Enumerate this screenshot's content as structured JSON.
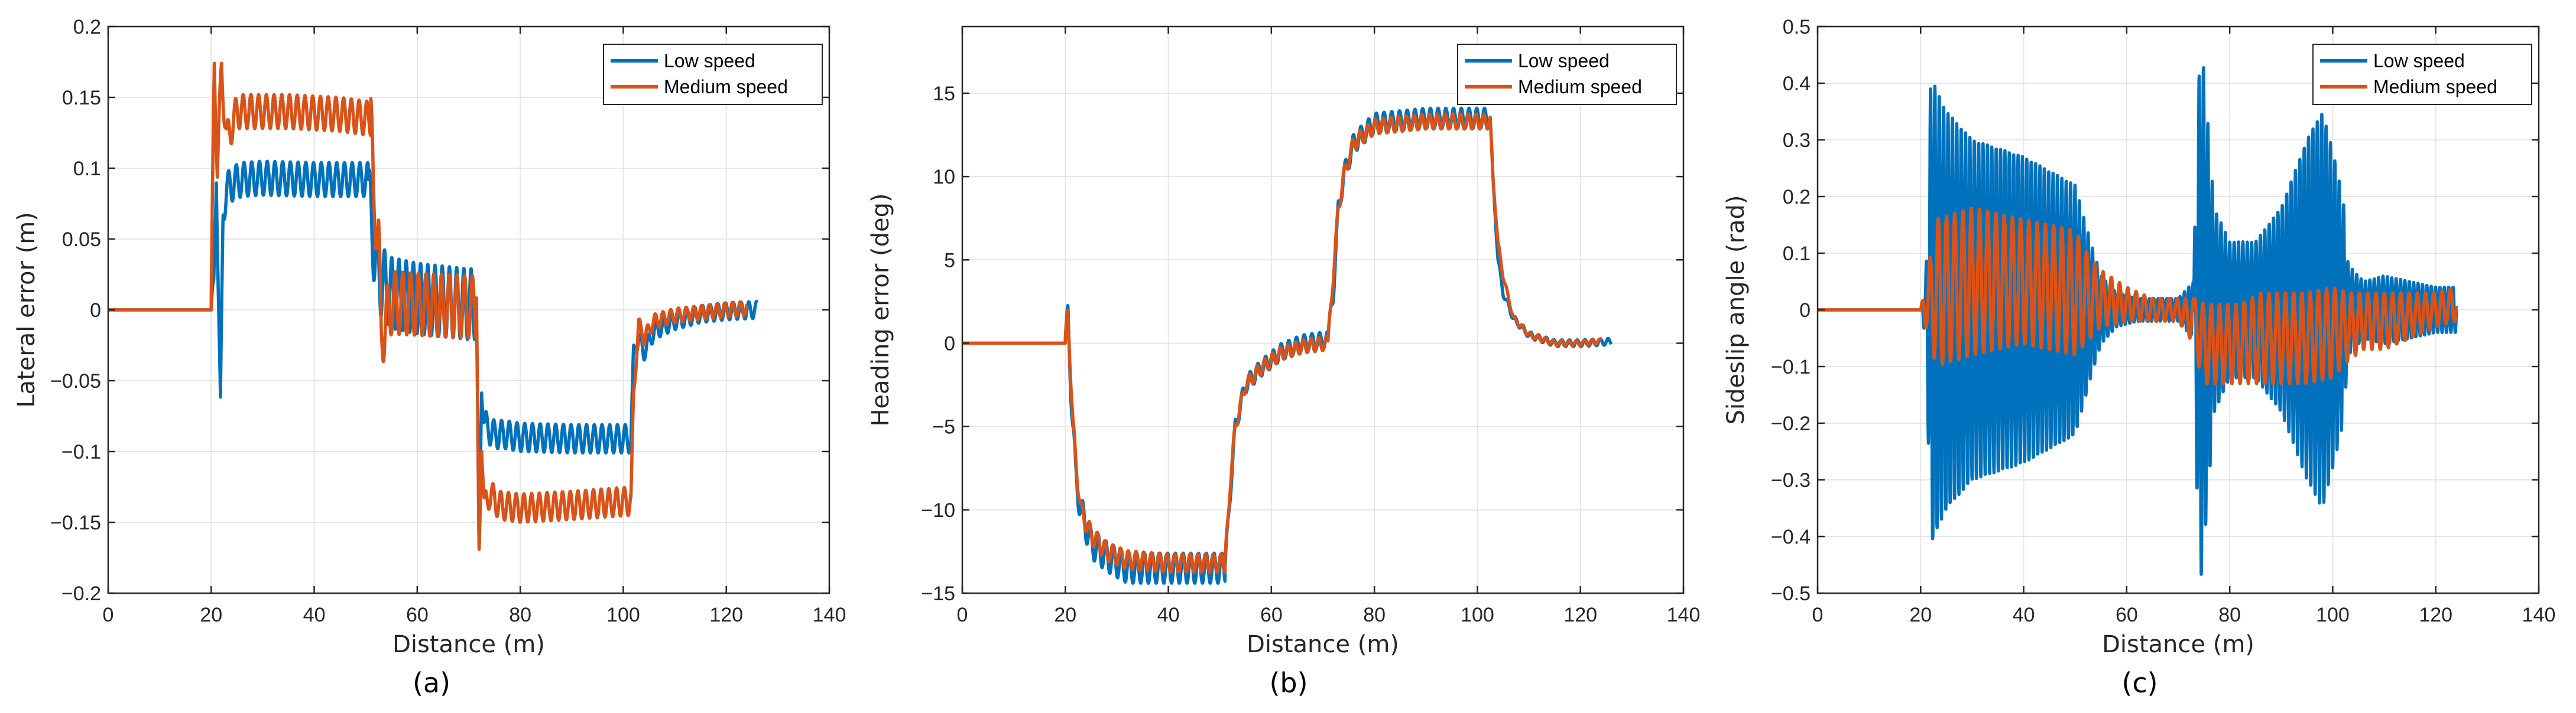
{
  "figure": {
    "panel_tags": [
      "(a)",
      "(b)",
      "(c)"
    ]
  },
  "colors": {
    "low_speed": "#0072BD",
    "medium_speed": "#D95319",
    "grid": "#e6e6e6",
    "axis": "#262626"
  },
  "chart_data": [
    {
      "type": "line",
      "title": "",
      "xlabel": "Distance (m)",
      "ylabel": "Lateral error (m)",
      "xlim": [
        0,
        140
      ],
      "ylim": [
        -0.2,
        0.2
      ],
      "xticks": [
        0,
        20,
        40,
        60,
        80,
        100,
        120,
        140
      ],
      "yticks": [
        -0.2,
        -0.15,
        -0.1,
        -0.05,
        0,
        0.05,
        0.1,
        0.15,
        0.2
      ],
      "xtick_labels": [
        "0",
        "20",
        "40",
        "60",
        "80",
        "100",
        "120",
        "140"
      ],
      "ytick_labels": [
        "−0.2",
        "−0.15",
        "−0.1",
        "−0.05",
        "0",
        "0.05",
        "0.1",
        "0.15",
        "0.2"
      ],
      "grid": true,
      "legend_position": "top-right",
      "series": [
        {
          "name": "Low speed",
          "color_key": "low_speed",
          "segments": [
            {
              "x": [
                0,
                20
              ],
              "base": 0
            },
            {
              "x": [
                20,
                20.5,
                21,
                21.8,
                22.3,
                23,
                24.5,
                26,
                30,
                40,
                50.5
              ],
              "base": [
                0,
                0.01,
                0.1,
                -0.073,
                0.07,
                0.085,
                0.09,
                0.092,
                0.093,
                0.092,
                0.092
              ],
              "amp": 0.012,
              "period": 1.5
            },
            {
              "x": [
                50.5,
                51,
                52,
                53,
                55,
                60,
                65,
                70,
                71.5
              ],
              "base": [
                0.092,
                0.06,
                0.035,
                0.02,
                0.012,
                0.008,
                0.006,
                0.004,
                0.004
              ],
              "amp": 0.025,
              "period": 1.4
            },
            {
              "x": [
                71.5,
                72,
                72.5,
                73,
                74,
                75,
                77,
                80,
                90,
                101.5
              ],
              "base": [
                0.004,
                -0.18,
                -0.05,
                -0.08,
                -0.085,
                -0.088,
                -0.088,
                -0.09,
                -0.091,
                -0.091
              ],
              "amp": 0.01,
              "period": 1.5
            },
            {
              "x": [
                101.5,
                102,
                103,
                104,
                106,
                110,
                115,
                120,
                126
              ],
              "base": [
                -0.091,
                -0.03,
                -0.02,
                -0.03,
                -0.015,
                -0.008,
                -0.003,
                -0.001,
                0
              ],
              "amp": 0.006,
              "period": 1.5
            }
          ]
        },
        {
          "name": "Medium speed",
          "color_key": "medium_speed",
          "segments": [
            {
              "x": [
                0,
                20
              ],
              "base": 0
            },
            {
              "x": [
                20,
                20.6,
                21.2,
                22,
                23,
                25,
                28,
                35,
                45,
                51
              ],
              "base": [
                0,
                0.175,
                0.1,
                0.17,
                0.12,
                0.14,
                0.14,
                0.14,
                0.138,
                0.135
              ],
              "amp": 0.012,
              "period": 1.5
            },
            {
              "x": [
                51,
                51.5,
                52.5,
                53,
                55,
                60,
                65,
                70,
                71.5
              ],
              "base": [
                0.135,
                0.08,
                0.05,
                -0.02,
                0.005,
                0.004,
                0.003,
                0.002,
                0.002
              ],
              "amp": 0.022,
              "period": 1.5
            },
            {
              "x": [
                71.5,
                72,
                72.5,
                73,
                74,
                76,
                80,
                90,
                101.5
              ],
              "base": [
                0.002,
                -0.175,
                -0.09,
                -0.14,
                -0.13,
                -0.138,
                -0.14,
                -0.138,
                -0.135
              ],
              "amp": 0.01,
              "period": 1.5
            },
            {
              "x": [
                101.5,
                102,
                103,
                104,
                106,
                110,
                115,
                120,
                124
              ],
              "base": [
                -0.135,
                -0.06,
                -0.01,
                -0.02,
                -0.008,
                -0.004,
                -0.002,
                0,
                0.001
              ],
              "amp": 0.005,
              "period": 1.5
            }
          ]
        }
      ]
    },
    {
      "type": "line",
      "title": "",
      "xlabel": "Distance (m)",
      "ylabel": "Heading error (deg)",
      "xlim": [
        0,
        140
      ],
      "ylim": [
        -15,
        19
      ],
      "xticks": [
        0,
        20,
        40,
        60,
        80,
        100,
        120,
        140
      ],
      "yticks": [
        -15,
        -10,
        -5,
        0,
        5,
        10,
        15
      ],
      "xtick_labels": [
        "0",
        "20",
        "40",
        "60",
        "80",
        "100",
        "120",
        "140"
      ],
      "ytick_labels": [
        "−15",
        "−10",
        "−5",
        "0",
        "5",
        "10",
        "15"
      ],
      "grid": true,
      "legend_position": "top-right",
      "series": [
        {
          "name": "Low speed",
          "color_key": "low_speed",
          "segments": [
            {
              "x": [
                0,
                20
              ],
              "base": 0
            },
            {
              "x": [
                20,
                20.5,
                21,
                21.5,
                22,
                23,
                25,
                28,
                32,
                40,
                51
              ],
              "base": [
                0,
                1.5,
                -2,
                -5,
                -8,
                -10,
                -12,
                -12.8,
                -13.5,
                -13.5,
                -13.5
              ],
              "amp": 0.9,
              "period": 1.5
            },
            {
              "x": [
                51,
                52,
                53,
                55,
                58,
                62,
                66,
                71
              ],
              "base": [
                -13.5,
                -9,
                -5,
                -2.5,
                -1.5,
                -0.5,
                0,
                0.2
              ],
              "amp": 0.5,
              "period": 1.5
            },
            {
              "x": [
                71,
                72,
                73,
                74,
                76,
                80,
                90,
                102.5
              ],
              "base": [
                0.2,
                3,
                8,
                10,
                12,
                13.2,
                13.5,
                13.5
              ],
              "amp": 0.6,
              "period": 1.5
            },
            {
              "x": [
                102.5,
                103,
                104,
                105,
                107,
                110,
                115,
                120,
                126
              ],
              "base": [
                13.5,
                10,
                5,
                3,
                1.5,
                0.5,
                0,
                0,
                0.1
              ],
              "amp": 0.2,
              "period": 1.5
            }
          ]
        },
        {
          "name": "Medium speed",
          "color_key": "medium_speed",
          "segments": [
            {
              "x": [
                0,
                20
              ],
              "base": 0
            },
            {
              "x": [
                20,
                20.5,
                21,
                21.5,
                22,
                23,
                25,
                28,
                32,
                40,
                51
              ],
              "base": [
                0,
                1.8,
                -1.5,
                -5,
                -7,
                -10,
                -11.5,
                -12.5,
                -13,
                -13.2,
                -13.2
              ],
              "amp": 0.55,
              "period": 1.5
            },
            {
              "x": [
                51,
                52,
                53,
                55,
                58,
                62,
                66,
                71
              ],
              "base": [
                -13.2,
                -8.5,
                -5,
                -2.5,
                -1.5,
                -0.6,
                -0.2,
                0
              ],
              "amp": 0.4,
              "period": 1.5
            },
            {
              "x": [
                71,
                72,
                73,
                74,
                76,
                80,
                90,
                102.5
              ],
              "base": [
                0,
                4,
                8,
                10,
                12,
                13,
                13.3,
                13.3
              ],
              "amp": 0.45,
              "period": 1.5
            },
            {
              "x": [
                102.5,
                103,
                104,
                105,
                107,
                110,
                115,
                120,
                124
              ],
              "base": [
                13.3,
                10,
                6,
                4,
                1.5,
                0.5,
                0,
                0,
                0.1
              ],
              "amp": 0.15,
              "period": 1.5
            }
          ]
        }
      ]
    },
    {
      "type": "line",
      "title": "",
      "xlabel": "Distance (m)",
      "ylabel": "Sideslip angle (rad)",
      "xlim": [
        0,
        140
      ],
      "ylim": [
        -0.5,
        0.5
      ],
      "xticks": [
        0,
        20,
        40,
        60,
        80,
        100,
        120,
        140
      ],
      "yticks": [
        -0.5,
        -0.4,
        -0.3,
        -0.2,
        -0.1,
        0,
        0.1,
        0.2,
        0.3,
        0.4,
        0.5
      ],
      "xtick_labels": [
        "0",
        "20",
        "40",
        "60",
        "80",
        "100",
        "120",
        "140"
      ],
      "ytick_labels": [
        "−0.5",
        "−0.4",
        "−0.3",
        "−0.2",
        "−0.1",
        "0",
        "0.1",
        "0.2",
        "0.3",
        "0.4",
        "0.5"
      ],
      "grid": true,
      "legend_position": "top-right",
      "series": [
        {
          "name": "Low speed",
          "color_key": "low_speed",
          "segments": [
            {
              "x": [
                0,
                20
              ],
              "base": 0
            },
            {
              "x": [
                20,
                21,
                22,
                22.5,
                25,
                30,
                40,
                50,
                53,
                55,
                58,
                62,
                66,
                70,
                73
              ],
              "base": 0,
              "amp": [
                0,
                0.05,
                0.42,
                0.4,
                0.35,
                0.3,
                0.27,
                0.22,
                0.12,
                0.06,
                0.03,
                0.02,
                0.02,
                0.02,
                0.05
              ],
              "period": 0.85
            },
            {
              "x": [
                73,
                73.8,
                74.5,
                75,
                77,
                80,
                85,
                90,
                95,
                98,
                100,
                102,
                103,
                106,
                110,
                115,
                120,
                124
              ],
              "base": 0,
              "amp": [
                0.05,
                0.38,
                0.47,
                0.42,
                0.18,
                0.12,
                0.12,
                0.18,
                0.3,
                0.35,
                0.28,
                0.2,
                0.08,
                0.05,
                0.06,
                0.05,
                0.04,
                0.04
              ],
              "period": 0.85
            }
          ]
        },
        {
          "name": "Medium speed",
          "color_key": "medium_speed",
          "segments": [
            {
              "x": [
                0,
                20
              ],
              "base": 0
            },
            {
              "x": [
                20,
                21,
                22,
                23,
                30,
                40,
                45,
                50,
                53,
                55,
                60,
                65,
                70,
                73
              ],
              "base": [
                0,
                0.01,
                0.02,
                0.03,
                0.05,
                0.05,
                0.04,
                0.03,
                0.02,
                0.02,
                0.01,
                0.0,
                0.0,
                -0.02
              ],
              "amp": [
                0,
                0.04,
                0.08,
                0.13,
                0.13,
                0.11,
                0.11,
                0.11,
                0.07,
                0.05,
                0.03,
                0.02,
                0.02,
                0.04
              ],
              "period": 1.6
            },
            {
              "x": [
                73,
                74,
                75,
                78,
                82,
                86,
                90,
                95,
                100,
                103,
                106,
                110,
                115,
                120,
                124
              ],
              "base": [
                -0.02,
                -0.04,
                -0.06,
                -0.06,
                -0.06,
                -0.05,
                -0.05,
                -0.05,
                -0.04,
                -0.03,
                -0.02,
                -0.02,
                -0.01,
                0,
                0.01
              ],
              "amp": [
                0.04,
                0.06,
                0.07,
                0.07,
                0.07,
                0.08,
                0.08,
                0.08,
                0.08,
                0.06,
                0.05,
                0.05,
                0.04,
                0.03,
                0.03
              ],
              "period": 1.6
            }
          ]
        }
      ]
    }
  ]
}
